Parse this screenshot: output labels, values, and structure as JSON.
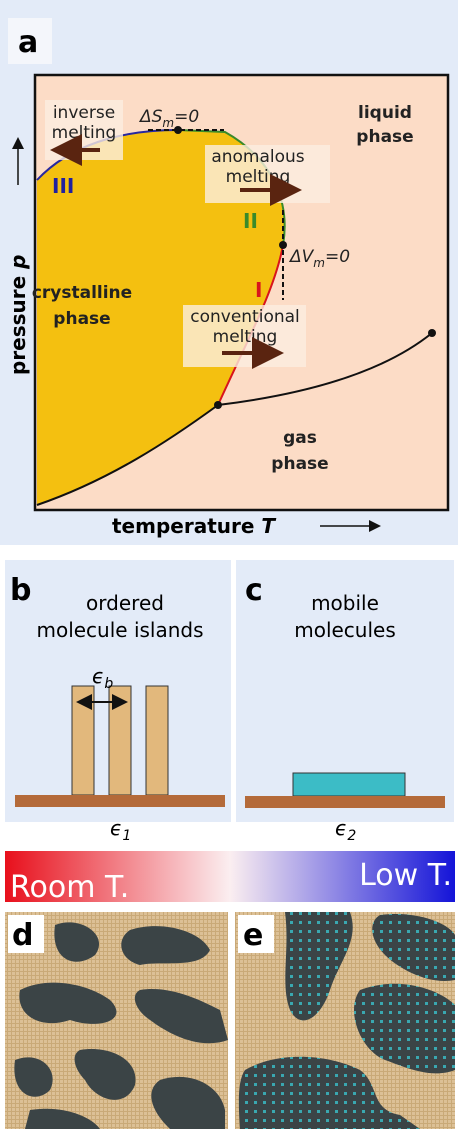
{
  "panel_a": {
    "label": "a",
    "delta_s": {
      "symbol": "ΔS",
      "sub": "m",
      "rest": "=0"
    },
    "delta_v": {
      "symbol": "ΔV",
      "sub": "m",
      "rest": "=0"
    },
    "liquid": [
      "liquid",
      "phase"
    ],
    "crystalline": [
      "crystalline",
      "phase"
    ],
    "gas": [
      "gas",
      "phase"
    ],
    "inverse": [
      "inverse",
      "melting"
    ],
    "anomalous": [
      "anomalous",
      "melting"
    ],
    "conventional": [
      "conventional",
      "melting"
    ],
    "branches": [
      "III",
      "II",
      "I"
    ],
    "y_axis": {
      "text": "pressure",
      "var": "p"
    },
    "x_axis": {
      "text": "temperature",
      "var": "T"
    }
  },
  "panel_b": {
    "label": "b",
    "title": [
      "ordered",
      "molecule islands"
    ],
    "epsilon_b": {
      "symbol": "ϵ",
      "sub": "b"
    },
    "epsilon_1": {
      "symbol": "ϵ",
      "sub": "1"
    }
  },
  "panel_c": {
    "label": "c",
    "title": [
      "mobile",
      "molecules"
    ],
    "epsilon_2": {
      "symbol": "ϵ",
      "sub": "2"
    }
  },
  "temperature_bar": {
    "left": "Room T.",
    "right": "Low T."
  },
  "panel_d": {
    "label": "d"
  },
  "panel_e": {
    "label": "e"
  }
}
